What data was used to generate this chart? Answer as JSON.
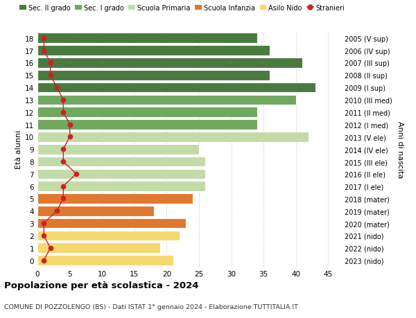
{
  "ages": [
    18,
    17,
    16,
    15,
    14,
    13,
    12,
    11,
    10,
    9,
    8,
    7,
    6,
    5,
    4,
    3,
    2,
    1,
    0
  ],
  "right_labels": [
    "2005 (V sup)",
    "2006 (IV sup)",
    "2007 (III sup)",
    "2008 (II sup)",
    "2009 (I sup)",
    "2010 (III med)",
    "2011 (II med)",
    "2012 (I med)",
    "2013 (V ele)",
    "2014 (IV ele)",
    "2015 (III ele)",
    "2016 (II ele)",
    "2017 (I ele)",
    "2018 (mater)",
    "2019 (mater)",
    "2020 (mater)",
    "2021 (nido)",
    "2022 (nido)",
    "2023 (nido)"
  ],
  "bar_values": [
    34,
    36,
    41,
    36,
    43,
    40,
    34,
    34,
    42,
    25,
    26,
    26,
    26,
    24,
    18,
    23,
    22,
    19,
    21
  ],
  "bar_colors": [
    "#4a7a40",
    "#4a7a40",
    "#4a7a40",
    "#4a7a40",
    "#4a7a40",
    "#6fa85e",
    "#6fa85e",
    "#6fa85e",
    "#c2dba8",
    "#c2dba8",
    "#c2dba8",
    "#c2dba8",
    "#c2dba8",
    "#e07830",
    "#e07830",
    "#e07830",
    "#f5d870",
    "#f5d870",
    "#f5d870"
  ],
  "stranieri_values": [
    1,
    1,
    2,
    2,
    3,
    4,
    4,
    5,
    5,
    4,
    4,
    6,
    4,
    4,
    3,
    1,
    1,
    2,
    1
  ],
  "stranieri_color": "#cc2222",
  "legend_labels": [
    "Sec. II grado",
    "Sec. I grado",
    "Scuola Primaria",
    "Scuola Infanzia",
    "Asilo Nido",
    "Stranieri"
  ],
  "legend_colors": [
    "#4a7a40",
    "#6fa85e",
    "#c2dba8",
    "#e07830",
    "#f5d870",
    "#cc2222"
  ],
  "ylabel_left": "Età alunni",
  "ylabel_right": "Anni di nascita",
  "title": "Popolazione per età scolastica - 2024",
  "subtitle": "COMUNE DI POZZOLENGO (BS) - Dati ISTAT 1° gennaio 2024 - Elaborazione TUTTITALIA.IT",
  "xlim": [
    0,
    47
  ],
  "xticks": [
    0,
    5,
    10,
    15,
    20,
    25,
    30,
    35,
    40,
    45
  ],
  "bg_color": "#ffffff",
  "bar_edge_color": "#ffffff",
  "bar_height": 0.82
}
